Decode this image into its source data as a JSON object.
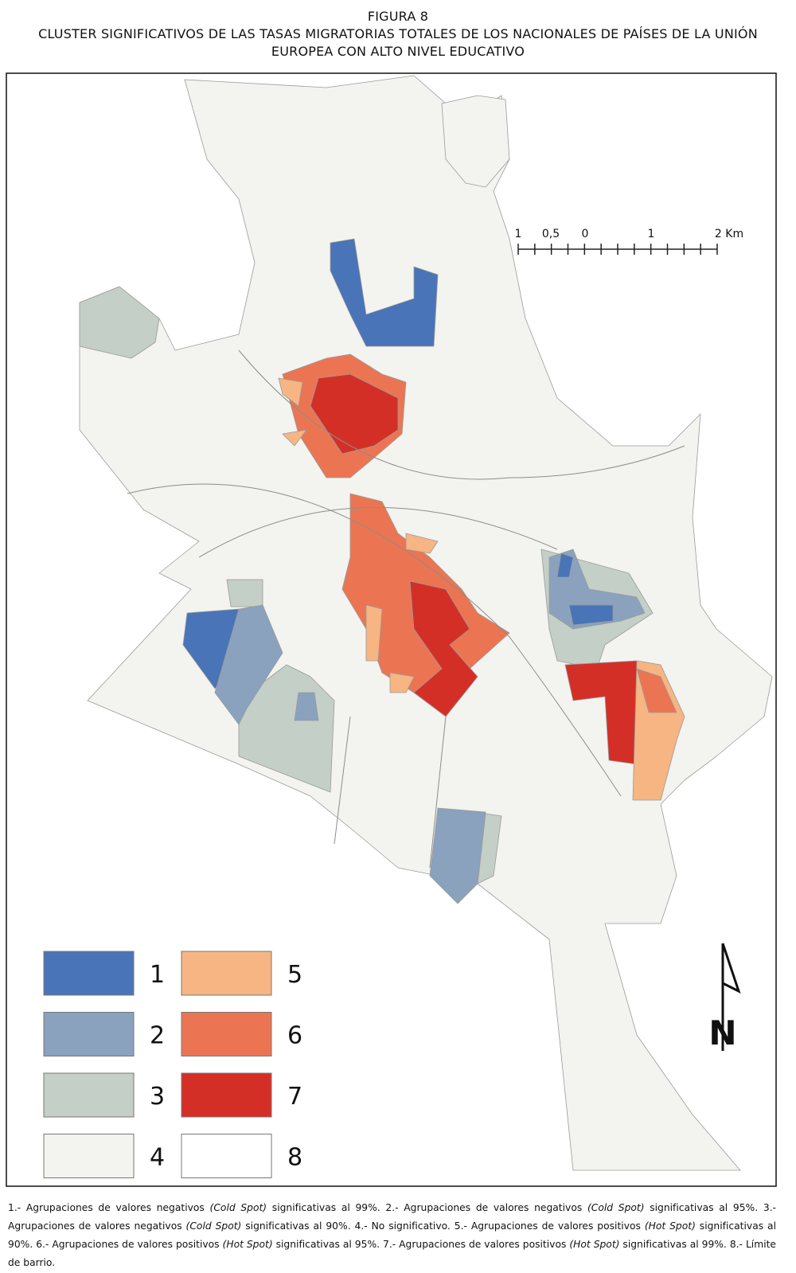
{
  "figure": {
    "label": "FIGURA 8",
    "title_lines": [
      "CLUSTER SIGNIFICATIVOS DE LAS TASAS MIGRATORIAS TOTALES DE LOS NACIONALES DE PAÍSES DE LA UNIÓN",
      "EUROPEA CON ALTO NIVEL EDUCATIVO"
    ]
  },
  "scale_bar": {
    "labels": [
      "1",
      "0,5",
      "0",
      "1",
      "2 Km"
    ]
  },
  "north_label": "N",
  "legend": {
    "items": [
      {
        "label": "1",
        "color": "#4a74b8"
      },
      {
        "label": "2",
        "color": "#8aa2bd"
      },
      {
        "label": "3",
        "color": "#c3cfc7"
      },
      {
        "label": "4",
        "color": "#f3f3ef"
      },
      {
        "label": "5",
        "color": "#f6b583"
      },
      {
        "label": "6",
        "color": "#eb7553"
      },
      {
        "label": "7",
        "color": "#d42f27"
      },
      {
        "label": "8",
        "color": "#ffffff"
      }
    ]
  },
  "caption": {
    "parts": [
      {
        "text": "1.- Agrupaciones de valores negativos ",
        "italic": false
      },
      {
        "text": "(Cold Spot)",
        "italic": true
      },
      {
        "text": " significativas al 99%. 2.- Agrupaciones de valores negativos ",
        "italic": false
      },
      {
        "text": "(Cold Spot)",
        "italic": true
      },
      {
        "text": " significativas al 95%. 3.- Agrupaciones de valores negativos ",
        "italic": false
      },
      {
        "text": "(Cold Spot)",
        "italic": true
      },
      {
        "text": " significativas al 90%. 4.- No significativo. 5.- Agrupaciones de valores positivos ",
        "italic": false
      },
      {
        "text": "(Hot Spot)",
        "italic": true
      },
      {
        "text": " significativas al 90%. 6.- Agrupaciones de valores positivos ",
        "italic": false
      },
      {
        "text": "(Hot Spot)",
        "italic": true
      },
      {
        "text": " significativas al 95%. 7.- Agrupaciones de valores positivos ",
        "italic": false
      },
      {
        "text": "(Hot Spot)",
        "italic": true
      },
      {
        "text": " significativas al 99%. 8.- Límite de barrio.",
        "italic": false
      }
    ]
  }
}
